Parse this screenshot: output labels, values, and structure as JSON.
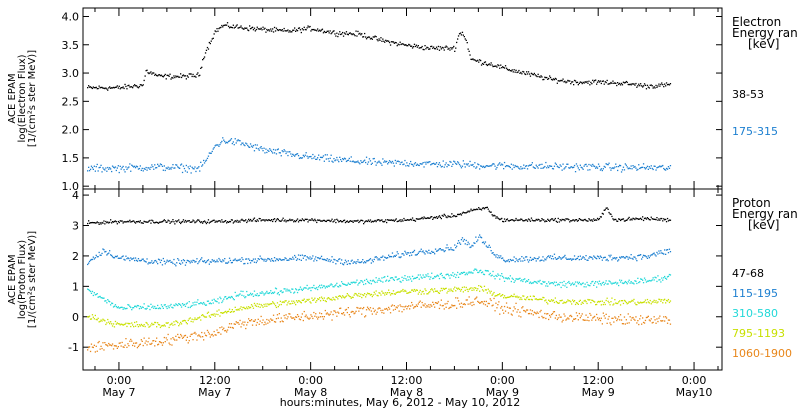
{
  "xaxis": {
    "title": "hours:minutes, May  6, 2012 - May 10, 2012",
    "ticks": [
      {
        "t": 0,
        "time": "0:00",
        "day": "May 7"
      },
      {
        "t": 12,
        "time": "12:00",
        "day": "May 7"
      },
      {
        "t": 24,
        "time": "0:00",
        "day": "May 8"
      },
      {
        "t": 36,
        "time": "12:00",
        "day": "May 8"
      },
      {
        "t": 48,
        "time": "0:00",
        "day": "May 9"
      },
      {
        "t": 60,
        "time": "12:00",
        "day": "May 9"
      },
      {
        "t": 72,
        "time": "0:00",
        "day": "May10"
      }
    ],
    "xlim": [
      -4.5,
      75.5
    ],
    "minor_step": 3
  },
  "colors": {
    "black": "#000000",
    "blue": "#1c7fd0",
    "cyan": "#22d8d8",
    "yellow": "#c8e000",
    "orange": "#e8861a"
  },
  "chart_data": [
    {
      "type": "scatter",
      "panel": "electron",
      "ylabel_lines": [
        "ACE EPAM",
        "log(Electron Flux)",
        "[1/(cm²s ster MeV)]"
      ],
      "ylim": [
        0.95,
        4.15
      ],
      "yticks": [
        1.0,
        1.5,
        2.0,
        2.5,
        3.0,
        3.5,
        4.0
      ],
      "ytick_labels": [
        "1.0",
        "1.5",
        "2.0",
        "2.5",
        "3.0",
        "3.5",
        "4.0"
      ],
      "legend_title_lines": [
        "Electron",
        "Energy ran",
        "[keV]"
      ],
      "series": [
        {
          "name": "38-53",
          "color": "black",
          "noise": 0.03,
          "x": [
            -4,
            0,
            3,
            3.3,
            5,
            8,
            10,
            10.5,
            12,
            13,
            15,
            18,
            21,
            24,
            27,
            30,
            33,
            36,
            39,
            42,
            42.5,
            43,
            43.5,
            44,
            47,
            48,
            51,
            54,
            57,
            60,
            63,
            66,
            69
          ],
          "y": [
            2.75,
            2.75,
            2.8,
            3.05,
            2.95,
            2.95,
            2.97,
            3.3,
            3.75,
            3.85,
            3.82,
            3.78,
            3.75,
            3.8,
            3.72,
            3.7,
            3.58,
            3.5,
            3.45,
            3.45,
            3.7,
            3.72,
            3.55,
            3.25,
            3.15,
            3.1,
            3.0,
            2.9,
            2.85,
            2.85,
            2.83,
            2.78,
            2.8
          ]
        },
        {
          "name": "175-315",
          "color": "blue",
          "noise": 0.045,
          "x": [
            -4,
            0,
            5,
            10,
            11,
            12,
            13,
            15,
            18,
            21,
            24,
            27,
            30,
            33,
            36,
            39,
            42,
            45,
            48,
            51,
            54,
            57,
            60,
            63,
            66,
            69
          ],
          "y": [
            1.32,
            1.33,
            1.35,
            1.32,
            1.5,
            1.72,
            1.82,
            1.78,
            1.65,
            1.58,
            1.52,
            1.48,
            1.45,
            1.42,
            1.42,
            1.4,
            1.4,
            1.38,
            1.37,
            1.36,
            1.36,
            1.35,
            1.35,
            1.34,
            1.34,
            1.33
          ]
        }
      ]
    },
    {
      "type": "scatter",
      "panel": "proton",
      "ylabel_lines": [
        "ACE EPAM",
        "log(Proton Flux)",
        "[1/(cm²s ster MeV)]"
      ],
      "ylim": [
        -1.75,
        4.2
      ],
      "yticks": [
        -1,
        0,
        1,
        2,
        3,
        4
      ],
      "ytick_labels": [
        "-1",
        "0",
        "1",
        "2",
        "3",
        "4"
      ],
      "legend_title_lines": [
        "Proton",
        "Energy ran",
        "[keV]"
      ],
      "series": [
        {
          "name": "47-68",
          "color": "black",
          "noise": 0.04,
          "x": [
            -4,
            0,
            6,
            12,
            18,
            24,
            30,
            36,
            42,
            44,
            46,
            47,
            48,
            54,
            60,
            61,
            62,
            66,
            69
          ],
          "y": [
            3.1,
            3.15,
            3.15,
            3.15,
            3.2,
            3.2,
            3.15,
            3.2,
            3.35,
            3.5,
            3.6,
            3.3,
            3.2,
            3.2,
            3.2,
            3.6,
            3.2,
            3.25,
            3.2
          ]
        },
        {
          "name": "115-195",
          "color": "blue",
          "noise": 0.07,
          "x": [
            -4,
            -2,
            0,
            6,
            12,
            18,
            24,
            30,
            36,
            42,
            43,
            44,
            45,
            46,
            47,
            48,
            54,
            60,
            66,
            69
          ],
          "y": [
            1.8,
            2.2,
            1.95,
            1.8,
            1.85,
            1.9,
            1.95,
            1.8,
            2.1,
            2.3,
            2.6,
            2.3,
            2.65,
            2.35,
            2.1,
            1.9,
            1.95,
            1.95,
            2.0,
            2.2
          ]
        },
        {
          "name": "310-580",
          "color": "cyan",
          "noise": 0.07,
          "x": [
            -4,
            0,
            6,
            12,
            15,
            18,
            24,
            30,
            36,
            42,
            45,
            48,
            54,
            60,
            66,
            69
          ],
          "y": [
            0.9,
            0.3,
            0.35,
            0.5,
            0.75,
            0.8,
            0.95,
            1.15,
            1.3,
            1.4,
            1.55,
            1.3,
            1.1,
            1.1,
            1.2,
            1.35
          ]
        },
        {
          "name": "795-1193",
          "color": "yellow",
          "noise": 0.07,
          "x": [
            -4,
            0,
            6,
            12,
            15,
            18,
            24,
            30,
            36,
            42,
            45,
            48,
            54,
            60,
            66,
            69
          ],
          "y": [
            0.05,
            -0.25,
            -0.25,
            0.1,
            0.3,
            0.4,
            0.55,
            0.75,
            0.85,
            0.9,
            0.95,
            0.7,
            0.55,
            0.5,
            0.5,
            0.55
          ]
        },
        {
          "name": "1060-1900",
          "color": "orange",
          "noise": 0.12,
          "x": [
            -4,
            0,
            6,
            12,
            15,
            18,
            24,
            30,
            36,
            42,
            45,
            48,
            54,
            60,
            66,
            69
          ],
          "y": [
            -1.0,
            -0.9,
            -0.75,
            -0.5,
            -0.2,
            -0.1,
            0.05,
            0.2,
            0.35,
            0.45,
            0.55,
            0.3,
            0.05,
            -0.05,
            -0.1,
            -0.1
          ]
        }
      ]
    }
  ]
}
